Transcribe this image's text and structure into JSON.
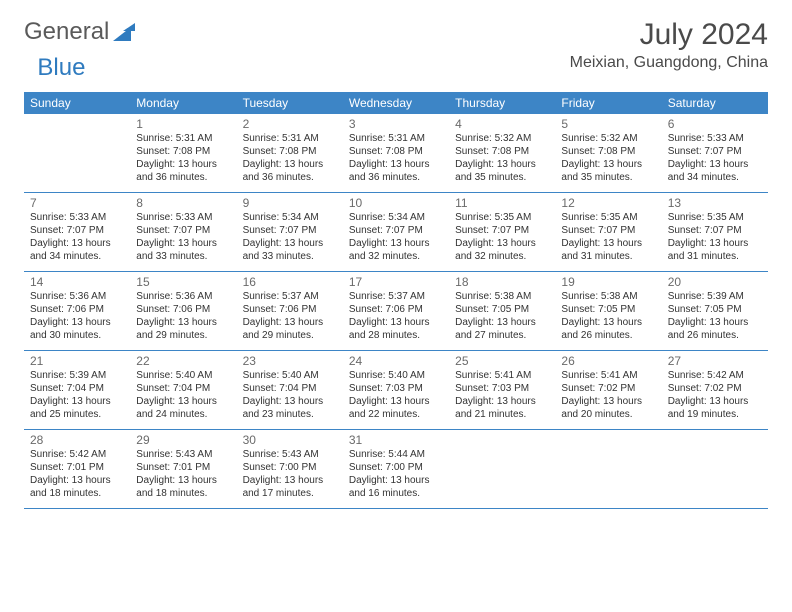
{
  "logo": {
    "part1": "General",
    "part2": "Blue"
  },
  "title": "July 2024",
  "location": "Meixian, Guangdong, China",
  "colors": {
    "header_bg": "#3d85c6",
    "header_text": "#ffffff",
    "border": "#3d85c6",
    "text": "#333333",
    "daynum": "#6a6a6a",
    "logo_gray": "#5a5a5a",
    "logo_blue": "#2f7bbf",
    "background": "#ffffff"
  },
  "typography": {
    "title_fontsize": 30,
    "location_fontsize": 16,
    "dayhead_fontsize": 12,
    "daynum_fontsize": 12,
    "info_fontsize": 10
  },
  "layout": {
    "columns": 7,
    "rows": 5,
    "first_day_col": 1
  },
  "dayNames": [
    "Sunday",
    "Monday",
    "Tuesday",
    "Wednesday",
    "Thursday",
    "Friday",
    "Saturday"
  ],
  "days": [
    {
      "n": 1,
      "sunrise": "5:31 AM",
      "sunset": "7:08 PM",
      "dl": "13 hours and 36 minutes."
    },
    {
      "n": 2,
      "sunrise": "5:31 AM",
      "sunset": "7:08 PM",
      "dl": "13 hours and 36 minutes."
    },
    {
      "n": 3,
      "sunrise": "5:31 AM",
      "sunset": "7:08 PM",
      "dl": "13 hours and 36 minutes."
    },
    {
      "n": 4,
      "sunrise": "5:32 AM",
      "sunset": "7:08 PM",
      "dl": "13 hours and 35 minutes."
    },
    {
      "n": 5,
      "sunrise": "5:32 AM",
      "sunset": "7:08 PM",
      "dl": "13 hours and 35 minutes."
    },
    {
      "n": 6,
      "sunrise": "5:33 AM",
      "sunset": "7:07 PM",
      "dl": "13 hours and 34 minutes."
    },
    {
      "n": 7,
      "sunrise": "5:33 AM",
      "sunset": "7:07 PM",
      "dl": "13 hours and 34 minutes."
    },
    {
      "n": 8,
      "sunrise": "5:33 AM",
      "sunset": "7:07 PM",
      "dl": "13 hours and 33 minutes."
    },
    {
      "n": 9,
      "sunrise": "5:34 AM",
      "sunset": "7:07 PM",
      "dl": "13 hours and 33 minutes."
    },
    {
      "n": 10,
      "sunrise": "5:34 AM",
      "sunset": "7:07 PM",
      "dl": "13 hours and 32 minutes."
    },
    {
      "n": 11,
      "sunrise": "5:35 AM",
      "sunset": "7:07 PM",
      "dl": "13 hours and 32 minutes."
    },
    {
      "n": 12,
      "sunrise": "5:35 AM",
      "sunset": "7:07 PM",
      "dl": "13 hours and 31 minutes."
    },
    {
      "n": 13,
      "sunrise": "5:35 AM",
      "sunset": "7:07 PM",
      "dl": "13 hours and 31 minutes."
    },
    {
      "n": 14,
      "sunrise": "5:36 AM",
      "sunset": "7:06 PM",
      "dl": "13 hours and 30 minutes."
    },
    {
      "n": 15,
      "sunrise": "5:36 AM",
      "sunset": "7:06 PM",
      "dl": "13 hours and 29 minutes."
    },
    {
      "n": 16,
      "sunrise": "5:37 AM",
      "sunset": "7:06 PM",
      "dl": "13 hours and 29 minutes."
    },
    {
      "n": 17,
      "sunrise": "5:37 AM",
      "sunset": "7:06 PM",
      "dl": "13 hours and 28 minutes."
    },
    {
      "n": 18,
      "sunrise": "5:38 AM",
      "sunset": "7:05 PM",
      "dl": "13 hours and 27 minutes."
    },
    {
      "n": 19,
      "sunrise": "5:38 AM",
      "sunset": "7:05 PM",
      "dl": "13 hours and 26 minutes."
    },
    {
      "n": 20,
      "sunrise": "5:39 AM",
      "sunset": "7:05 PM",
      "dl": "13 hours and 26 minutes."
    },
    {
      "n": 21,
      "sunrise": "5:39 AM",
      "sunset": "7:04 PM",
      "dl": "13 hours and 25 minutes."
    },
    {
      "n": 22,
      "sunrise": "5:40 AM",
      "sunset": "7:04 PM",
      "dl": "13 hours and 24 minutes."
    },
    {
      "n": 23,
      "sunrise": "5:40 AM",
      "sunset": "7:04 PM",
      "dl": "13 hours and 23 minutes."
    },
    {
      "n": 24,
      "sunrise": "5:40 AM",
      "sunset": "7:03 PM",
      "dl": "13 hours and 22 minutes."
    },
    {
      "n": 25,
      "sunrise": "5:41 AM",
      "sunset": "7:03 PM",
      "dl": "13 hours and 21 minutes."
    },
    {
      "n": 26,
      "sunrise": "5:41 AM",
      "sunset": "7:02 PM",
      "dl": "13 hours and 20 minutes."
    },
    {
      "n": 27,
      "sunrise": "5:42 AM",
      "sunset": "7:02 PM",
      "dl": "13 hours and 19 minutes."
    },
    {
      "n": 28,
      "sunrise": "5:42 AM",
      "sunset": "7:01 PM",
      "dl": "13 hours and 18 minutes."
    },
    {
      "n": 29,
      "sunrise": "5:43 AM",
      "sunset": "7:01 PM",
      "dl": "13 hours and 18 minutes."
    },
    {
      "n": 30,
      "sunrise": "5:43 AM",
      "sunset": "7:00 PM",
      "dl": "13 hours and 17 minutes."
    },
    {
      "n": 31,
      "sunrise": "5:44 AM",
      "sunset": "7:00 PM",
      "dl": "13 hours and 16 minutes."
    }
  ],
  "labels": {
    "sunrise": "Sunrise:",
    "sunset": "Sunset:",
    "daylight": "Daylight:"
  }
}
